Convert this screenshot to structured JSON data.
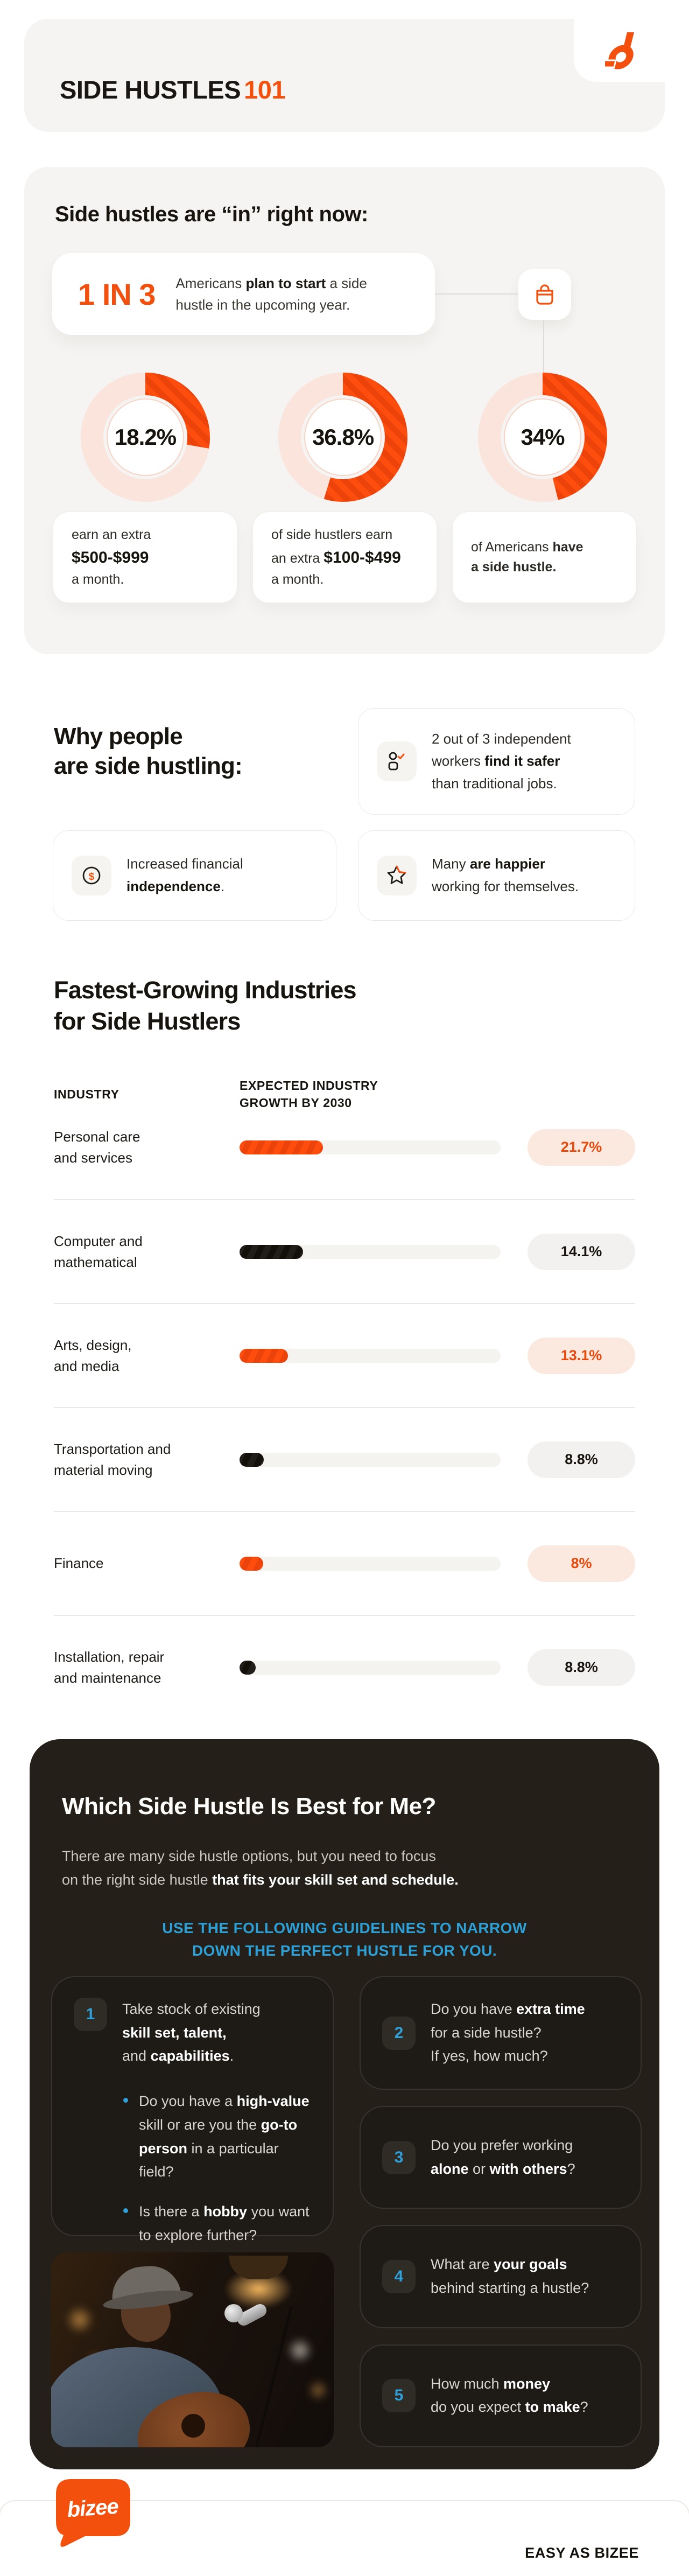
{
  "colors": {
    "accent_orange": "#F2500C",
    "stripe_orange": "#FF4D0E",
    "stripe_orange_dark": "#EC430B",
    "pale_orange_badge": "#FBE9E0",
    "pale_ring": "#FAE4DB",
    "ink": "#17140F",
    "blue_accent": "#2FA0DA",
    "dark_section_bg": "#242019",
    "dark_card_bg": "#1E1B17"
  },
  "header": {
    "title": "SIDE HUSTLES",
    "title_accent": "101"
  },
  "hero": {
    "heading": "Side hustles are “in” right now:"
  },
  "chart_data": [
    {
      "type": "pie",
      "subtype": "donut-multiples",
      "title": "Side hustles are “in” right now:",
      "legend_position": "below-each-donut",
      "callout": {
        "big": "1 IN 3",
        "text": "Americans **plan to start** a side\nhustle in the upcoming year."
      },
      "donuts": [
        {
          "value": 18.2,
          "value_label": "18.2%",
          "arc_deg": 100,
          "caption": "earn an extra\n**$500-$999**\na month."
        },
        {
          "value": 36.8,
          "value_label": "36.8%",
          "arc_deg": 197,
          "caption": "of side hustlers earn\nan extra  **$100-$499**\na month."
        },
        {
          "value": 34,
          "value_label": "34%",
          "arc_deg": 166,
          "caption": "of Americans **have\na side hustle.**"
        }
      ]
    },
    {
      "type": "bar",
      "orientation": "horizontal",
      "title": "Fastest-Growing Industries\nfor Side Hustlers",
      "col_headers": [
        "INDUSTRY",
        "EXPECTED INDUSTRY\nGROWTH BY 2030"
      ],
      "xlim": [
        0,
        100
      ],
      "rows": [
        {
          "category": "Personal care\nand services",
          "value": 21.7,
          "value_label": "21.7%",
          "bar_pct": 32.0,
          "accent": true
        },
        {
          "category": "Computer and\nmathematical",
          "value": 14.1,
          "value_label": "14.1%",
          "bar_pct": 24.3,
          "accent": false
        },
        {
          "category": "Arts, design,\nand media",
          "value": 13.1,
          "value_label": "13.1%",
          "bar_pct": 18.6,
          "accent": true
        },
        {
          "category": "Transportation and\nmaterial moving",
          "value": 8.8,
          "value_label": "8.8%",
          "bar_pct": 9.3,
          "accent": false
        },
        {
          "category": "Finance",
          "value": 8,
          "value_label": "8%",
          "bar_pct": 9.0,
          "accent": true
        },
        {
          "category": "Installation, repair\nand maintenance",
          "value": 8.8,
          "value_label": "8.8%",
          "bar_pct": 6.2,
          "accent": false
        }
      ]
    }
  ],
  "why": {
    "heading": "Why people\nare side hustling:",
    "cards": [
      {
        "icon": "independent-worker-check-icon",
        "text": "2 out of 3 independent\nworkers **find it safer**\nthan traditional jobs."
      },
      {
        "icon": "dollar-coin-icon",
        "text": "Increased financial\n**independence**."
      },
      {
        "icon": "star-icon",
        "text": "Many **are happier**\nworking for themselves."
      }
    ]
  },
  "quiz": {
    "heading": "Which Side Hustle Is Best for Me?",
    "intro": "There are many side hustle options, but you need to focus\non the right side hustle **that fits your skill set and schedule.**",
    "callout": "USE THE FOLLOWING GUIDELINES TO NARROW\nDOWN THE PERFECT HUSTLE FOR YOU.",
    "steps": [
      {
        "num": "1",
        "text": "Take stock of existing\n**skill set, talent,**\nand **capabilities**.",
        "bullets": [
          "Do you have a **high-value**\nskill or are you the **go-to**\n**person** in a particular field?",
          "Is there a **hobby** you want\nto explore further?"
        ]
      },
      {
        "num": "2",
        "text": "Do you have **extra time**\nfor a side hustle?\nIf yes, how much?"
      },
      {
        "num": "3",
        "text": "Do you prefer working\n**alone** or **with others**?"
      },
      {
        "num": "4",
        "text": "What are **your goals**\nbehind starting a hustle?"
      },
      {
        "num": "5",
        "text": "How much **money**\ndo you expect **to make**?"
      }
    ],
    "photo": "man singing with guitar and microphone on stage"
  },
  "footer": {
    "logo": "bizee",
    "tagline": "EASY AS BIZEE"
  }
}
